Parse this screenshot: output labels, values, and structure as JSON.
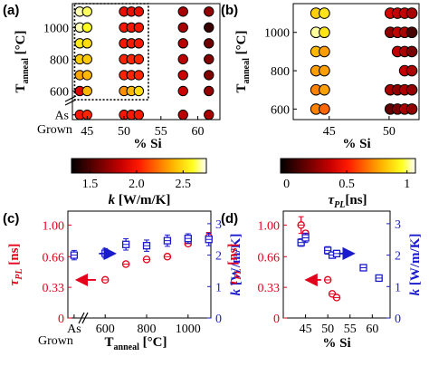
{
  "colors": {
    "red": "#e4001b",
    "blue": "#1a1acd"
  },
  "panel_labels": {
    "a": "(a)",
    "b": "(b)",
    "c": "(c)",
    "d": "(d)"
  },
  "chart_data": [
    {
      "panel": "(a)",
      "type": "scatter",
      "xlabel": "% Si",
      "ylabel_main": "T",
      "ylabel_sub": "anneal",
      "ylabel_unit": " [°C]",
      "x_ticks": [
        "45",
        "50",
        "55",
        "60"
      ],
      "xlim": [
        43,
        63
      ],
      "y_ticks": [
        "1000",
        "800",
        "600",
        "As"
      ],
      "y_tick_values": [
        1000,
        800,
        600,
        450
      ],
      "y_extra_label": "Grown",
      "ylim": [
        420,
        1150
      ],
      "x_columns": [
        44,
        45,
        50,
        51,
        52,
        58,
        61.5
      ],
      "y_rows": [
        450,
        600,
        700,
        800,
        900,
        1000,
        1100
      ],
      "highlight_box": {
        "x": [
          43.3,
          53.3
        ],
        "y": [
          545,
          1150
        ]
      },
      "points": [
        {
          "x": 44,
          "y": 1100,
          "v": 2.7
        },
        {
          "x": 45,
          "y": 1100,
          "v": 2.65
        },
        {
          "x": 50,
          "y": 1100,
          "v": 1.95
        },
        {
          "x": 51,
          "y": 1100,
          "v": 1.95
        },
        {
          "x": 52,
          "y": 1100,
          "v": 1.95
        },
        {
          "x": 58,
          "y": 1100,
          "v": 1.75
        },
        {
          "x": 61.5,
          "y": 1100,
          "v": 1.7
        },
        {
          "x": 44,
          "y": 1000,
          "v": 2.7
        },
        {
          "x": 45,
          "y": 1000,
          "v": 2.6
        },
        {
          "x": 50,
          "y": 1000,
          "v": 2.0
        },
        {
          "x": 51,
          "y": 1000,
          "v": 2.0
        },
        {
          "x": 52,
          "y": 1000,
          "v": 2.0
        },
        {
          "x": 58,
          "y": 1000,
          "v": 1.75
        },
        {
          "x": 61.5,
          "y": 1000,
          "v": 1.45
        },
        {
          "x": 44,
          "y": 900,
          "v": 2.55
        },
        {
          "x": 45,
          "y": 900,
          "v": 2.5
        },
        {
          "x": 50,
          "y": 900,
          "v": 2.0
        },
        {
          "x": 51,
          "y": 900,
          "v": 2.0
        },
        {
          "x": 52,
          "y": 900,
          "v": 2.0
        },
        {
          "x": 58,
          "y": 900,
          "v": 1.8
        },
        {
          "x": 61.5,
          "y": 900,
          "v": 1.6
        },
        {
          "x": 44,
          "y": 800,
          "v": 2.45
        },
        {
          "x": 45,
          "y": 800,
          "v": 2.45
        },
        {
          "x": 50,
          "y": 800,
          "v": 2.05
        },
        {
          "x": 51,
          "y": 800,
          "v": 2.05
        },
        {
          "x": 52,
          "y": 800,
          "v": 2.05
        },
        {
          "x": 58,
          "y": 800,
          "v": 1.8
        },
        {
          "x": 61.5,
          "y": 800,
          "v": 1.65
        },
        {
          "x": 44,
          "y": 700,
          "v": 2.35
        },
        {
          "x": 45,
          "y": 700,
          "v": 2.4
        },
        {
          "x": 50,
          "y": 700,
          "v": 2.05
        },
        {
          "x": 51,
          "y": 700,
          "v": 2.05
        },
        {
          "x": 52,
          "y": 700,
          "v": 2.05
        },
        {
          "x": 58,
          "y": 700,
          "v": 1.85
        },
        {
          "x": 61.5,
          "y": 700,
          "v": 1.65
        },
        {
          "x": 44,
          "y": 600,
          "v": 1.9
        },
        {
          "x": 45,
          "y": 600,
          "v": 2.4
        },
        {
          "x": 50,
          "y": 600,
          "v": 2.3
        },
        {
          "x": 51,
          "y": 600,
          "v": 2.4
        },
        {
          "x": 52,
          "y": 600,
          "v": 2.5
        },
        {
          "x": 58,
          "y": 600,
          "v": 1.85
        },
        {
          "x": 61.5,
          "y": 600,
          "v": 1.7
        },
        {
          "x": 44,
          "y": 450,
          "v": 2.0
        },
        {
          "x": 45,
          "y": 450,
          "v": 2.05
        },
        {
          "x": 50,
          "y": 450,
          "v": 2.0
        },
        {
          "x": 51,
          "y": 450,
          "v": 2.0
        },
        {
          "x": 52,
          "y": 450,
          "v": 2.0
        },
        {
          "x": 58,
          "y": 450,
          "v": 1.8
        },
        {
          "x": 61.5,
          "y": 450,
          "v": 1.75
        }
      ],
      "colorbar": {
        "label_main": "k",
        "label_unit": " [W/m/K]",
        "ticks": [
          "1.5",
          "2.0",
          "2.5"
        ],
        "tick_values": [
          1.5,
          2.0,
          2.5
        ],
        "range": [
          1.3,
          2.75
        ]
      }
    },
    {
      "panel": "(b)",
      "type": "scatter",
      "xlabel": "% Si",
      "ylabel_main": "T",
      "ylabel_sub": "anneal",
      "ylabel_unit": " [°C]",
      "x_ticks": [
        "45",
        "50"
      ],
      "xlim": [
        42,
        52.5
      ],
      "y_ticks": [
        "1000",
        "800",
        "600"
      ],
      "y_tick_values": [
        1000,
        800,
        600
      ],
      "ylim": [
        545,
        1150
      ],
      "points": [
        {
          "x": 43.9,
          "y": 1100,
          "v": 0.85
        },
        {
          "x": 44.6,
          "y": 1100,
          "v": 0.9
        },
        {
          "x": 50.1,
          "y": 1100,
          "v": 0.4
        },
        {
          "x": 50.7,
          "y": 1100,
          "v": 0.35
        },
        {
          "x": 51.3,
          "y": 1100,
          "v": 0.35
        },
        {
          "x": 51.9,
          "y": 1100,
          "v": 0.3
        },
        {
          "x": 43.9,
          "y": 1000,
          "v": 1.02
        },
        {
          "x": 44.6,
          "y": 1000,
          "v": 0.9
        },
        {
          "x": 50.1,
          "y": 1000,
          "v": 0.25
        },
        {
          "x": 50.7,
          "y": 1000,
          "v": 0.35
        },
        {
          "x": 51.3,
          "y": 1000,
          "v": 0.3
        },
        {
          "x": 51.9,
          "y": 1000,
          "v": 0.1
        },
        {
          "x": 43.9,
          "y": 900,
          "v": 0.8
        },
        {
          "x": 44.6,
          "y": 900,
          "v": 0.75
        },
        {
          "x": 50.7,
          "y": 900,
          "v": 0.35
        },
        {
          "x": 51.3,
          "y": 900,
          "v": 0.3
        },
        {
          "x": 51.9,
          "y": 900,
          "v": 0.2
        },
        {
          "x": 43.9,
          "y": 800,
          "v": 0.75
        },
        {
          "x": 44.6,
          "y": 800,
          "v": 0.75
        },
        {
          "x": 51.3,
          "y": 800,
          "v": 0.35
        },
        {
          "x": 51.9,
          "y": 800,
          "v": 0.3
        },
        {
          "x": 43.9,
          "y": 700,
          "v": 0.7
        },
        {
          "x": 44.6,
          "y": 700,
          "v": 0.75
        },
        {
          "x": 50.1,
          "y": 700,
          "v": 0.3
        },
        {
          "x": 50.7,
          "y": 700,
          "v": 0.25
        },
        {
          "x": 51.3,
          "y": 700,
          "v": 0.3
        },
        {
          "x": 51.9,
          "y": 700,
          "v": 0.25
        },
        {
          "x": 43.9,
          "y": 600,
          "v": 0.7
        },
        {
          "x": 44.6,
          "y": 600,
          "v": 0.65
        },
        {
          "x": 50.1,
          "y": 600,
          "v": 0.15
        },
        {
          "x": 50.7,
          "y": 600,
          "v": 0.2
        },
        {
          "x": 51.3,
          "y": 600,
          "v": 0.3
        },
        {
          "x": 51.9,
          "y": 600,
          "v": 0.25
        }
      ],
      "colorbar": {
        "label_main": "τ",
        "label_sub": "PL",
        "label_unit": "[ns]",
        "ticks": [
          "0",
          "0.5",
          "1"
        ],
        "tick_values": [
          0,
          0.5,
          1
        ],
        "range": [
          -0.05,
          1.07
        ]
      }
    },
    {
      "panel": "(c)",
      "type": "scatter",
      "xlabel_main": "T",
      "xlabel_sub": "anneal",
      "xlabel_unit": " [°C]",
      "x_ticks": [
        "As",
        "600",
        "800",
        "1000"
      ],
      "x_tick_values": [
        450,
        600,
        800,
        1000
      ],
      "x_extra_label": "Grown",
      "xlim": [
        420,
        1110
      ],
      "ylabel_left_main": "τ",
      "ylabel_left_sub": "PL",
      "ylabel_left_unit": " [ns]",
      "ylim_left": [
        0,
        1.15
      ],
      "y_left_ticks": [
        "0",
        "0.33",
        "0.66",
        "1.00"
      ],
      "y_left_tick_values": [
        0,
        0.33,
        0.66,
        1.0
      ],
      "ylabel_right_main": "k",
      "ylabel_right_unit": " [W/m/K]",
      "ylim_right": [
        0,
        3.4
      ],
      "y_right_ticks": [
        "0",
        "1",
        "2",
        "3"
      ],
      "y_right_tick_values": [
        0,
        1,
        2,
        3
      ],
      "series": [
        {
          "name": "τPL",
          "marker": "circle",
          "color": "#e4001b",
          "x": [
            600,
            700,
            800,
            900,
            1000,
            1100
          ],
          "y": [
            0.41,
            0.58,
            0.63,
            0.66,
            0.8,
            0.87
          ],
          "yerr": [
            0.02,
            0.02,
            0.02,
            0.02,
            0.02,
            0.05
          ]
        },
        {
          "name": "k",
          "marker": "square",
          "color": "#1a1acd",
          "x": [
            450,
            600,
            700,
            800,
            900,
            1000,
            1100
          ],
          "y": [
            2.0,
            2.06,
            2.34,
            2.3,
            2.46,
            2.53,
            2.5
          ],
          "yerr": [
            0.15,
            0.15,
            0.18,
            0.18,
            0.18,
            0.15,
            0.2
          ]
        }
      ],
      "arrows": [
        {
          "axis": "left",
          "from": [
            555,
            0.41
          ],
          "to": [
            470,
            0.41
          ],
          "color": "#e4001b"
        },
        {
          "axis": "right",
          "from": [
            570,
            2.05
          ],
          "to": [
            640,
            2.05
          ],
          "color": "#1a1acd"
        }
      ]
    },
    {
      "panel": "(d)",
      "type": "scatter",
      "xlabel": "% Si",
      "x_ticks": [
        "45",
        "50",
        "55",
        "60"
      ],
      "x_tick_values": [
        45,
        50,
        55,
        60
      ],
      "xlim": [
        40,
        64
      ],
      "ylabel_left_main": "τ",
      "ylabel_left_sub": "PL",
      "ylabel_left_unit": " [ns]",
      "ylim_left": [
        0,
        1.15
      ],
      "y_left_ticks": [
        "0",
        "0.33",
        "0.66",
        "1.00"
      ],
      "y_left_tick_values": [
        0,
        0.33,
        0.66,
        1.0
      ],
      "ylabel_right_main": "k",
      "ylabel_right_unit": " [W/m/K]",
      "ylim_right": [
        0,
        3.4
      ],
      "y_right_ticks": [
        "0",
        "1",
        "2",
        "3"
      ],
      "y_right_tick_values": [
        0,
        1,
        2,
        3
      ],
      "series": [
        {
          "name": "τPL",
          "marker": "circle",
          "color": "#e4001b",
          "x": [
            44,
            45,
            50,
            51,
            52
          ],
          "y": [
            1.0,
            0.91,
            0.41,
            0.26,
            0.22
          ],
          "yerr": [
            0.09,
            0.03,
            0.02,
            0.02,
            0.02
          ]
        },
        {
          "name": "k",
          "marker": "square",
          "color": "#1a1acd",
          "x": [
            44,
            45,
            50,
            51,
            52,
            58,
            61.5
          ],
          "y": [
            2.4,
            2.55,
            2.15,
            2.0,
            2.05,
            1.6,
            1.27
          ],
          "yerr": [
            0.12,
            0.15,
            0.12,
            0.1,
            0.1,
            0.05,
            0.05
          ]
        }
      ],
      "arrows": [
        {
          "axis": "left",
          "from": [
            48.5,
            0.41
          ],
          "to": [
            45.5,
            0.41
          ],
          "color": "#e4001b"
        },
        {
          "axis": "right",
          "from": [
            52.5,
            2.05
          ],
          "to": [
            55.5,
            2.05
          ],
          "color": "#1a1acd"
        }
      ]
    }
  ]
}
